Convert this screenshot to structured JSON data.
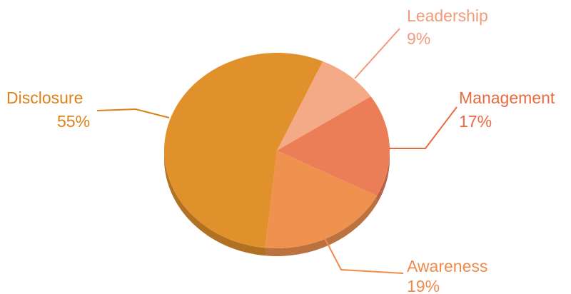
{
  "chart_data": {
    "type": "pie",
    "title": "",
    "style": "3d",
    "categories": [
      "Leadership",
      "Management",
      "Awareness",
      "Disclosure"
    ],
    "values": [
      9,
      17,
      19,
      55
    ],
    "labels": [
      "9%",
      "17%",
      "19%",
      "55%"
    ],
    "colors": [
      "#F4A987",
      "#EB7D57",
      "#F0924F",
      "#E1912B"
    ],
    "label_colors": [
      "#F29B7B",
      "#E76A41",
      "#F08A4A",
      "#DC8218"
    ]
  }
}
